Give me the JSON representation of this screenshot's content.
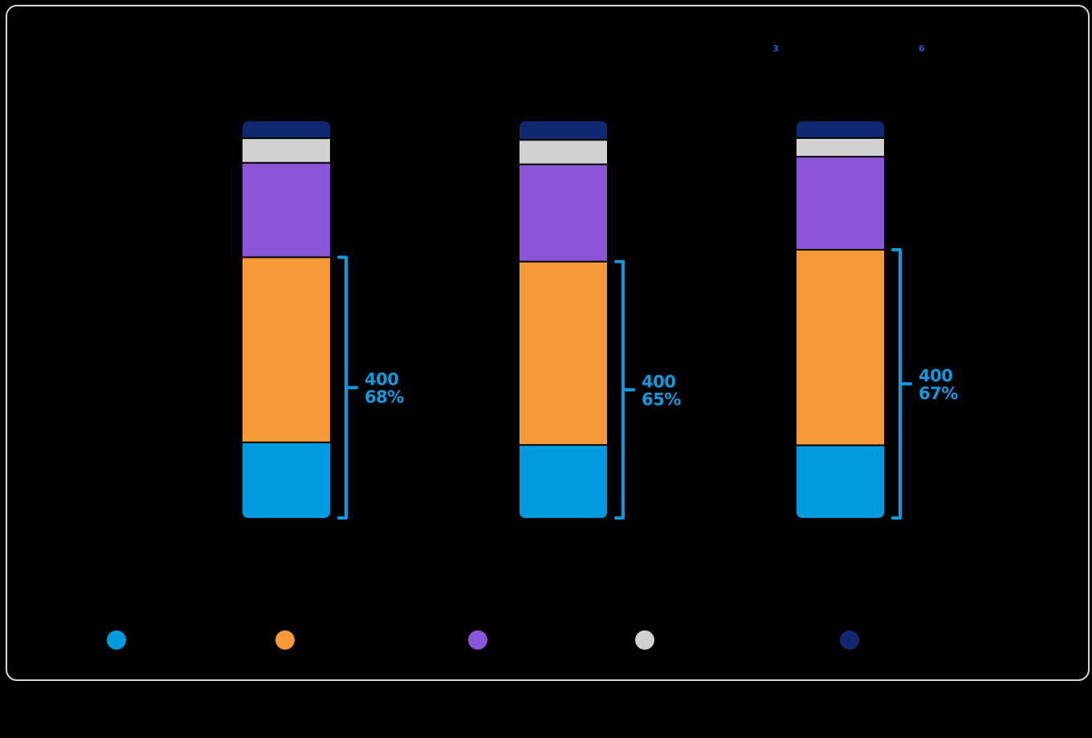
{
  "chart_data": {
    "type": "bar",
    "stacked": true,
    "categories": [
      "",
      "",
      ""
    ],
    "series": [
      {
        "values": [
          20,
          19.5,
          19.5
        ],
        "color": "#009ade"
      },
      {
        "values": [
          49,
          49,
          52.5
        ],
        "color": "#f59a36"
      },
      {
        "values": [
          25,
          26,
          25
        ],
        "color": "#8b55d8"
      },
      {
        "values": [
          6.5,
          6.5,
          5
        ],
        "color": "#d1d1d1"
      },
      {
        "values": [
          4.5,
          5,
          4.5
        ],
        "color": "#0f2870"
      }
    ],
    "brackets": [
      {
        "count": "400",
        "percent": "68%",
        "top_segment": 1
      },
      {
        "count": "400",
        "percent": "65%",
        "top_segment": 1
      },
      {
        "count": "400",
        "percent": "67%",
        "top_segment": 1
      }
    ],
    "header_notes": [
      "3",
      "6"
    ],
    "legend_placement": "bottom",
    "grid": false,
    "colors": {
      "accent": "#0f9ae0",
      "background": "#000000",
      "border": "#d7d7d7"
    }
  }
}
